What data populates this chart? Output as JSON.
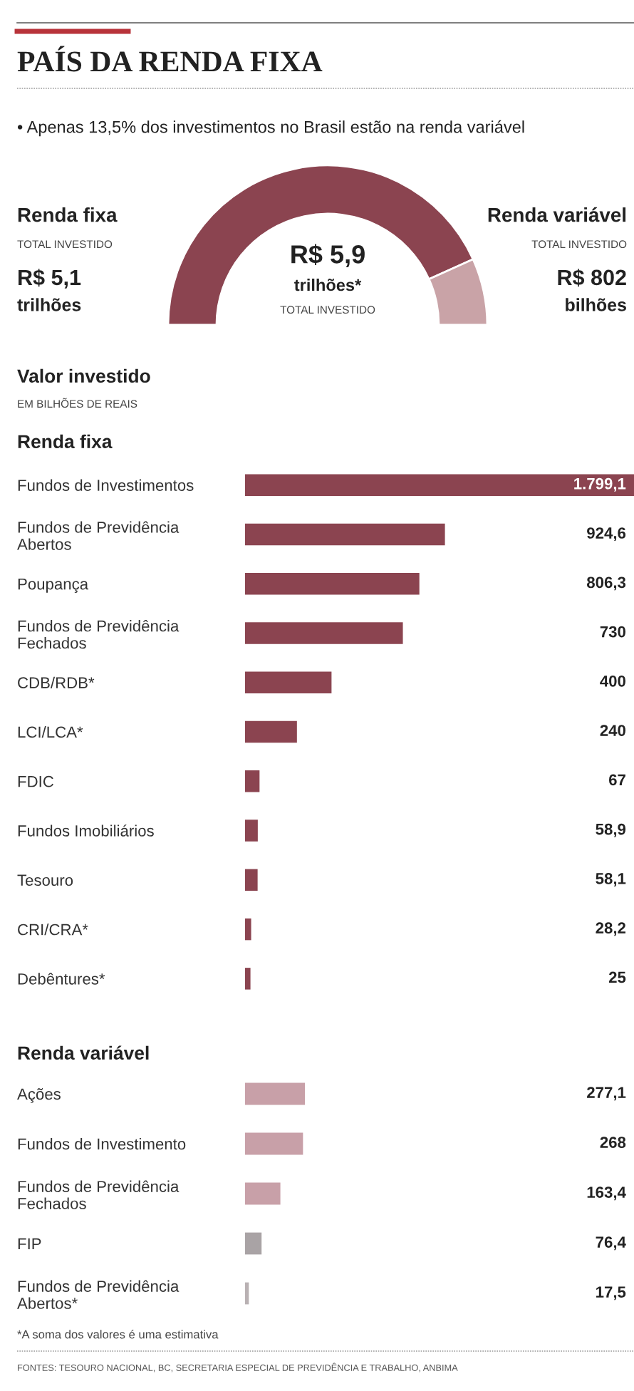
{
  "chart_data": [
    {
      "type": "donut",
      "title": "PAÍS DA RENDA FIXA",
      "subtitle": "• Apenas 13,5% dos investimentos no Brasil estão na renda variável",
      "categories": [
        "Renda fixa",
        "Renda variável"
      ],
      "values": [
        86.5,
        13.5
      ],
      "colors": [
        "#8b4450",
        "#c9a3a7"
      ],
      "annotations": [
        "TOTAL INVESTIDO",
        "R$ 5,1",
        "trilhões",
        "TOTAL INVESTIDO",
        "R$ 802",
        "bilhões",
        "R$ 5,9",
        "trilhões*",
        "TOTAL INVESTIDO"
      ]
    },
    {
      "type": "bar",
      "orientation": "horizontal",
      "title": "Renda fixa",
      "annotations": [
        "Valor investido",
        "EM BILHÕES DE REAIS"
      ],
      "categories": [
        "Fundos de Investimentos",
        "Fundos de Previdência\nAbertos",
        "Poupança",
        "Fundos de Previdência\nFechados",
        "CDB/RDB*",
        "LCI/LCA*",
        "FDIC",
        "Fundos Imobiliários",
        "Tesouro",
        "CRI/CRA*",
        "Debêntures*"
      ],
      "values": [
        1799.1,
        924.6,
        806.3,
        730,
        400,
        240,
        67,
        58.9,
        58.1,
        28.2,
        25
      ],
      "value_labels": [
        "1.799,1",
        "924,6",
        "806,3",
        "730",
        "400",
        "240",
        "67",
        "58,9",
        "58,1",
        "28,2",
        "25"
      ],
      "color": "#8b4450",
      "xlim": [
        0,
        1799.1
      ]
    },
    {
      "type": "bar",
      "orientation": "horizontal",
      "title": "Renda variável",
      "annotations": [
        "*A soma dos valores é uma estimativa",
        "FONTES: TESOURO NACIONAL, BC, SECRETARIA ESPECIAL DE PREVIDÊNCIA E TRABALHO, ANBIMA"
      ],
      "categories": [
        "Ações",
        "Fundos de Investimento",
        "Fundos de Previdência\nFechados",
        "FIP",
        "Fundos de Previdência\nAbertos*"
      ],
      "values": [
        277.1,
        268,
        163.4,
        76.4,
        17.5
      ],
      "value_labels": [
        "277,1",
        "268",
        "163,4",
        "76,4",
        "17,5"
      ],
      "colors": [
        "#c8a0a8",
        "#c8a0a8",
        "#c8a0a8",
        "#a9a3a5",
        "#b9b1b3"
      ],
      "xlim": [
        0,
        1799.1
      ]
    }
  ]
}
